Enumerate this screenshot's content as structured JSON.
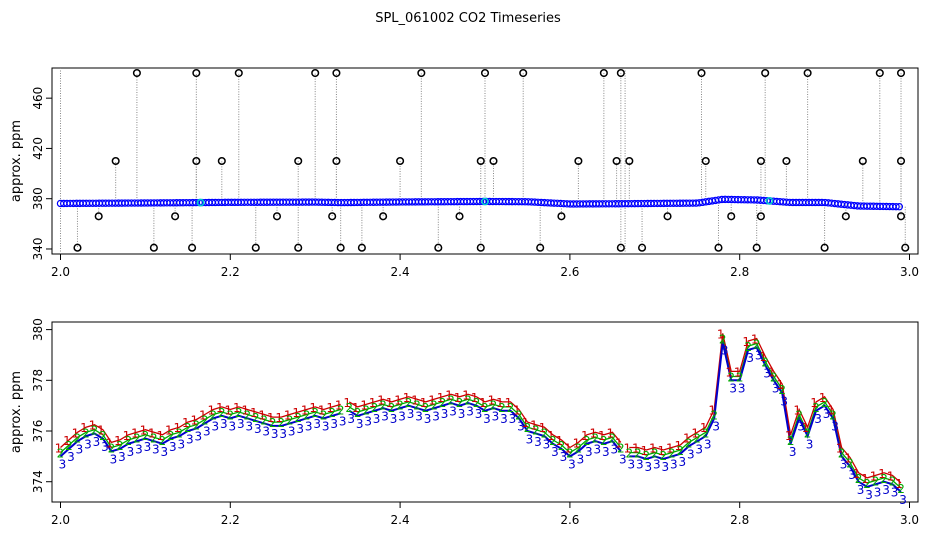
{
  "title": "SPL_061002  CO2 Timeseries",
  "chart_data": [
    {
      "type": "scatter",
      "ylabel": "approx. ppm",
      "xlim": [
        1.99,
        3.01
      ],
      "ylim": [
        336,
        484
      ],
      "xticks": [
        "2.0",
        "2.2",
        "2.4",
        "2.6",
        "2.8",
        "3.0"
      ],
      "yticks": [
        "340",
        "380",
        "420",
        "460"
      ],
      "grid": false,
      "series": [
        {
          "values_description": "raw",
          "color": "#0000ff"
        },
        {
          "values_description": "filtered",
          "color": "#00cccc"
        }
      ],
      "baseline": [
        [
          2.0,
          376.2
        ],
        [
          2.1,
          376.6
        ],
        [
          2.2,
          377.1
        ],
        [
          2.3,
          377.3
        ],
        [
          2.33,
          376.9
        ],
        [
          2.4,
          377.4
        ],
        [
          2.5,
          377.8
        ],
        [
          2.55,
          377.6
        ],
        [
          2.6,
          375.8
        ],
        [
          2.66,
          376.0
        ],
        [
          2.75,
          376.5
        ],
        [
          2.78,
          379.5
        ],
        [
          2.82,
          379.0
        ],
        [
          2.86,
          377.0
        ],
        [
          2.9,
          377.0
        ],
        [
          2.94,
          374.2
        ],
        [
          2.99,
          373.6
        ]
      ],
      "spikes_high": [
        [
          2.09,
          480
        ],
        [
          2.16,
          480
        ],
        [
          2.21,
          480
        ],
        [
          2.3,
          480
        ],
        [
          2.325,
          480
        ],
        [
          2.425,
          480
        ],
        [
          2.5,
          480
        ],
        [
          2.545,
          480
        ],
        [
          2.64,
          480
        ],
        [
          2.66,
          480
        ],
        [
          2.755,
          480
        ],
        [
          2.83,
          480
        ],
        [
          2.88,
          480
        ],
        [
          2.965,
          480
        ],
        [
          2.99,
          480
        ]
      ],
      "spikes_mid": [
        [
          2.065,
          410
        ],
        [
          2.16,
          410
        ],
        [
          2.19,
          410
        ],
        [
          2.28,
          410
        ],
        [
          2.325,
          410
        ],
        [
          2.4,
          410
        ],
        [
          2.495,
          410
        ],
        [
          2.51,
          410
        ],
        [
          2.61,
          410
        ],
        [
          2.655,
          410
        ],
        [
          2.67,
          410
        ],
        [
          2.76,
          410
        ],
        [
          2.825,
          410
        ],
        [
          2.855,
          410
        ],
        [
          2.945,
          410
        ],
        [
          2.99,
          410
        ]
      ],
      "spikes_low": [
        [
          2.02,
          341
        ],
        [
          2.045,
          366
        ],
        [
          2.11,
          341
        ],
        [
          2.135,
          366
        ],
        [
          2.155,
          341
        ],
        [
          2.23,
          341
        ],
        [
          2.255,
          366
        ],
        [
          2.28,
          341
        ],
        [
          2.32,
          366
        ],
        [
          2.33,
          341
        ],
        [
          2.355,
          341
        ],
        [
          2.38,
          366
        ],
        [
          2.445,
          341
        ],
        [
          2.47,
          366
        ],
        [
          2.495,
          341
        ],
        [
          2.565,
          341
        ],
        [
          2.59,
          366
        ],
        [
          2.66,
          341
        ],
        [
          2.685,
          341
        ],
        [
          2.715,
          366
        ],
        [
          2.775,
          341
        ],
        [
          2.79,
          366
        ],
        [
          2.82,
          341
        ],
        [
          2.825,
          366
        ],
        [
          2.9,
          341
        ],
        [
          2.925,
          366
        ],
        [
          2.99,
          366
        ],
        [
          2.995,
          341
        ]
      ]
    },
    {
      "type": "line",
      "ylabel": "approx. ppm",
      "xlim": [
        1.99,
        3.01
      ],
      "ylim": [
        373.2,
        380.3
      ],
      "xticks": [
        "2.0",
        "2.2",
        "2.4",
        "2.6",
        "2.8",
        "3.0"
      ],
      "yticks": [
        "374",
        "376",
        "378",
        "380"
      ],
      "grid": false,
      "marker_labels": [
        "1",
        "2",
        "3"
      ],
      "series_colors": [
        "#cc0000",
        "#00aa00",
        "#0000cc"
      ],
      "x": [
        2.0,
        2.01,
        2.02,
        2.03,
        2.04,
        2.05,
        2.06,
        2.07,
        2.08,
        2.09,
        2.1,
        2.11,
        2.12,
        2.13,
        2.14,
        2.15,
        2.16,
        2.17,
        2.18,
        2.19,
        2.2,
        2.21,
        2.22,
        2.23,
        2.24,
        2.25,
        2.26,
        2.27,
        2.28,
        2.29,
        2.3,
        2.31,
        2.32,
        2.33,
        2.34,
        2.35,
        2.36,
        2.37,
        2.38,
        2.39,
        2.4,
        2.41,
        2.42,
        2.43,
        2.44,
        2.45,
        2.46,
        2.47,
        2.48,
        2.49,
        2.5,
        2.51,
        2.52,
        2.53,
        2.54,
        2.55,
        2.56,
        2.57,
        2.58,
        2.59,
        2.6,
        2.61,
        2.62,
        2.63,
        2.64,
        2.65,
        2.66,
        2.67,
        2.68,
        2.69,
        2.7,
        2.71,
        2.72,
        2.73,
        2.74,
        2.75,
        2.76,
        2.77,
        2.78,
        2.79,
        2.8,
        2.81,
        2.82,
        2.83,
        2.84,
        2.85,
        2.86,
        2.87,
        2.88,
        2.89,
        2.9,
        2.91,
        2.92,
        2.93,
        2.94,
        2.95,
        2.96,
        2.97,
        2.98,
        2.99
      ],
      "y": [
        375.0,
        375.3,
        375.6,
        375.8,
        375.9,
        375.7,
        375.2,
        375.3,
        375.5,
        375.6,
        375.7,
        375.6,
        375.5,
        375.7,
        375.8,
        376.0,
        376.1,
        376.3,
        376.5,
        376.6,
        376.5,
        376.6,
        376.5,
        376.4,
        376.3,
        376.2,
        376.2,
        376.3,
        376.4,
        376.5,
        376.6,
        376.5,
        376.6,
        376.7,
        376.8,
        376.6,
        376.7,
        376.8,
        376.9,
        376.8,
        376.9,
        377.0,
        376.9,
        376.8,
        376.9,
        377.0,
        377.1,
        377.0,
        377.1,
        377.0,
        376.8,
        376.9,
        376.8,
        376.8,
        376.5,
        376.0,
        375.9,
        375.8,
        375.5,
        375.3,
        375.0,
        375.2,
        375.5,
        375.6,
        375.5,
        375.6,
        375.2,
        375.0,
        375.0,
        374.9,
        375.0,
        374.9,
        375.0,
        375.1,
        375.4,
        375.6,
        375.8,
        376.5,
        379.5,
        378.0,
        378.0,
        379.2,
        379.3,
        378.6,
        378.0,
        377.5,
        375.5,
        376.5,
        375.8,
        376.8,
        377.0,
        376.5,
        375.0,
        374.6,
        374.0,
        373.8,
        373.9,
        374.0,
        373.9,
        373.6
      ]
    }
  ]
}
